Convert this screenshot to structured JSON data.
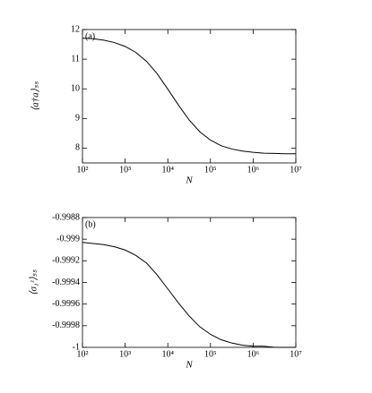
{
  "chart_data": [
    {
      "type": "line",
      "annotation": "(a)",
      "xlabel": "N",
      "ylabel": "⟨a†a⟩ₛₛ",
      "xscale": "log",
      "x": [
        100,
        177.8,
        316.2,
        562.3,
        1000,
        1778,
        3162,
        5623,
        10000,
        17783,
        31623,
        56234,
        100000,
        177828,
        316228,
        562341,
        1000000,
        1778279,
        3162278,
        5623413,
        10000000
      ],
      "series": [
        {
          "color": "#000000",
          "values": [
            11.71,
            11.69,
            11.64,
            11.56,
            11.43,
            11.23,
            10.93,
            10.51,
            9.99,
            9.45,
            8.95,
            8.55,
            8.27,
            8.08,
            7.97,
            7.9,
            7.86,
            7.83,
            7.82,
            7.81,
            7.81
          ]
        }
      ],
      "xlim": [
        100,
        10000000
      ],
      "xticks": [
        {
          "value": 100,
          "label": "10²"
        },
        {
          "value": 1000,
          "label": "10³"
        },
        {
          "value": 10000,
          "label": "10⁴"
        },
        {
          "value": 100000,
          "label": "10⁵"
        },
        {
          "value": 1000000,
          "label": "10⁶"
        },
        {
          "value": 10000000,
          "label": "10⁷"
        }
      ],
      "ylim": [
        7.5,
        12
      ],
      "yticks": [
        8,
        9,
        10,
        11,
        12
      ]
    },
    {
      "type": "line",
      "annotation": "(b)",
      "xlabel": "N",
      "ylabel": "⟨σ₁ᶻ⟩ₛₛ",
      "xscale": "log",
      "x": [
        100,
        177.8,
        316.2,
        562.3,
        1000,
        1778,
        3162,
        5623,
        10000,
        17783,
        31623,
        56234,
        100000,
        177828,
        316228,
        562341,
        1000000,
        1778279,
        3162278,
        5623413,
        10000000
      ],
      "series": [
        {
          "color": "#000000",
          "values": [
            -0.99903,
            -0.99904,
            -0.99905,
            -0.99907,
            -0.9991,
            -0.99915,
            -0.99922,
            -0.99933,
            -0.99946,
            -0.99959,
            -0.99971,
            -0.99981,
            -0.99988,
            -0.99993,
            -0.99996,
            -0.99998,
            -0.99999,
            -0.99999,
            -1,
            -1,
            -1
          ]
        }
      ],
      "xlim": [
        100,
        10000000
      ],
      "xticks": [
        {
          "value": 100,
          "label": "10²"
        },
        {
          "value": 1000,
          "label": "10³"
        },
        {
          "value": 10000,
          "label": "10⁴"
        },
        {
          "value": 100000,
          "label": "10⁵"
        },
        {
          "value": 1000000,
          "label": "10⁶"
        },
        {
          "value": 10000000,
          "label": "10⁷"
        }
      ],
      "ylim": [
        -1,
        -0.9988
      ],
      "yticks": [
        -1,
        -0.9998,
        -0.9996,
        -0.9994,
        -0.9992,
        -0.999,
        -0.9988
      ]
    }
  ]
}
